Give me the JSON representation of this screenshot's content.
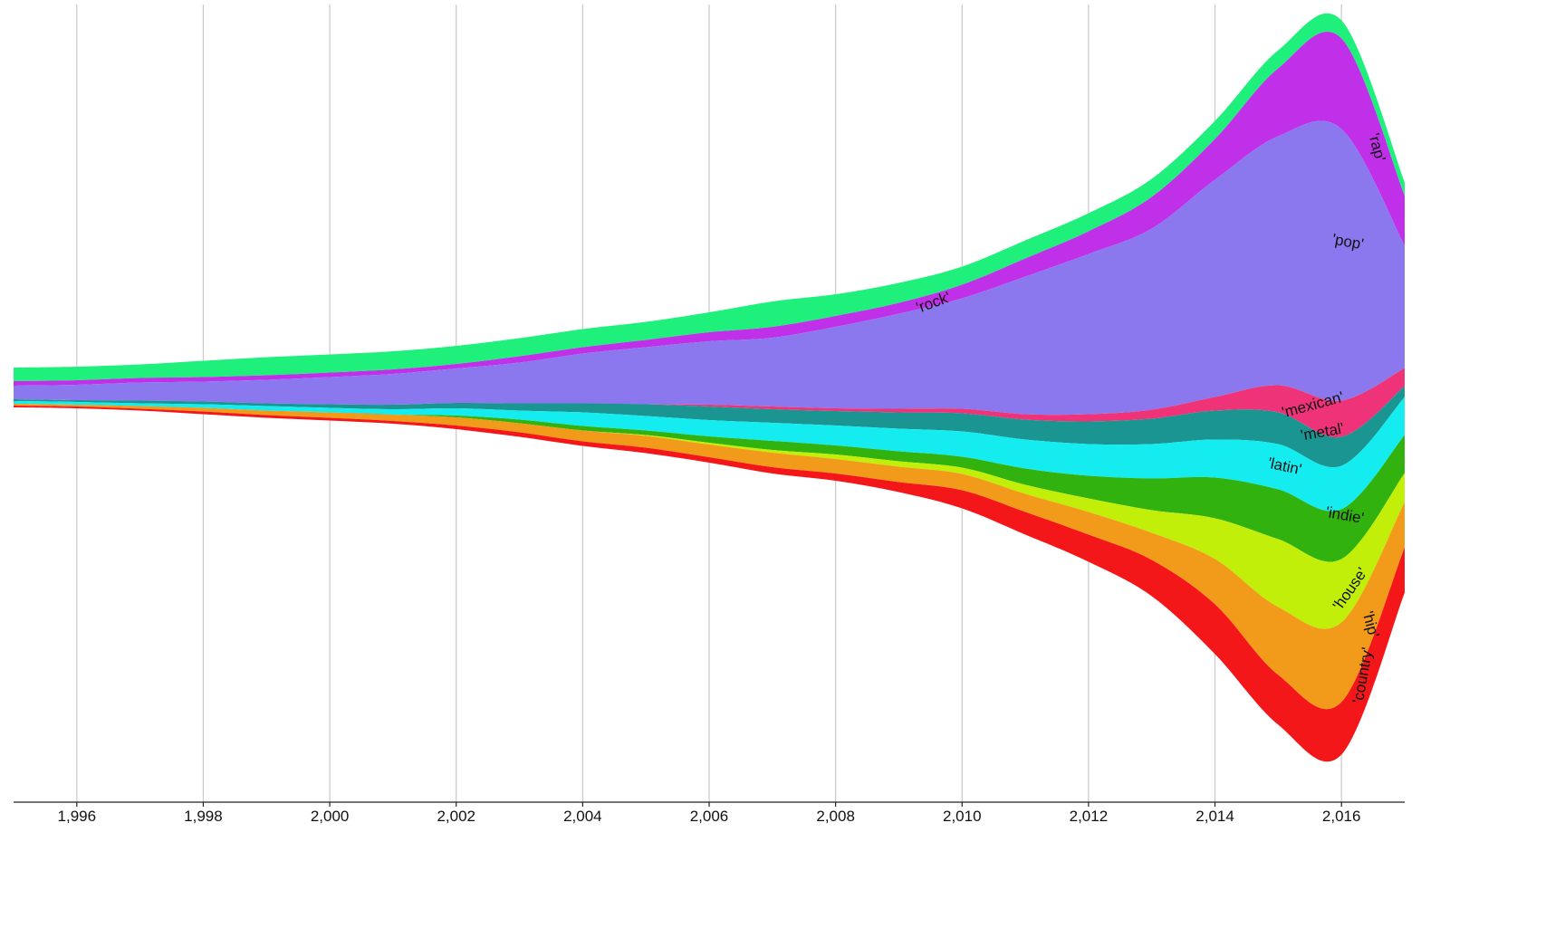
{
  "chart_data": {
    "type": "streamgraph",
    "x": [
      1995,
      1996,
      1997,
      1998,
      1999,
      2000,
      2001,
      2002,
      2003,
      2004,
      2005,
      2006,
      2007,
      2008,
      2009,
      2010,
      2011,
      2012,
      2013,
      2014,
      2015,
      2016,
      2017
    ],
    "xlim": [
      1995,
      2017
    ],
    "ylim": [
      -440,
      430
    ],
    "x_tick_values": [
      1996,
      1998,
      2000,
      2002,
      2004,
      2006,
      2008,
      2010,
      2012,
      2014,
      2016
    ],
    "x_tick_labels": [
      "1,996",
      "1,998",
      "2,000",
      "2,002",
      "2,004",
      "2,006",
      "2,008",
      "2,010",
      "2,012",
      "2,014",
      "2,016"
    ],
    "grid": true,
    "series": [
      {
        "name": "'rock'",
        "color": "#1ff07c",
        "values": [
          15,
          15,
          15,
          18,
          20,
          20,
          20,
          20,
          20,
          20,
          20,
          22,
          28,
          24,
          22,
          20,
          20,
          20,
          20,
          20,
          20,
          20,
          15
        ]
      },
      {
        "name": "'rap'",
        "color": "#c030e8",
        "values": [
          5,
          5,
          5,
          5,
          5,
          5,
          5,
          5,
          7,
          7,
          8,
          10,
          12,
          12,
          12,
          15,
          20,
          25,
          35,
          45,
          75,
          100,
          55
        ]
      },
      {
        "name": "'pop'",
        "color": "#8c78ee",
        "values": [
          15,
          17,
          20,
          22,
          26,
          30,
          34,
          38,
          45,
          55,
          63,
          70,
          76,
          90,
          105,
          122,
          152,
          177,
          200,
          240,
          275,
          300,
          135
        ]
      },
      {
        "name": "'mexican'",
        "color": "#ee3378",
        "values": [
          0,
          0,
          0,
          0,
          0,
          0,
          0,
          0,
          0,
          0,
          0,
          2,
          3,
          3,
          4,
          5,
          6,
          8,
          10,
          15,
          30,
          40,
          20
        ]
      },
      {
        "name": "'metal'",
        "color": "#1a9592",
        "values": [
          2,
          2,
          3,
          3,
          3,
          4,
          5,
          6,
          8,
          10,
          13,
          15,
          15,
          16,
          18,
          20,
          22,
          25,
          28,
          32,
          35,
          32,
          12
        ]
      },
      {
        "name": "'latin'",
        "color": "#15ecf0",
        "values": [
          3,
          3,
          3,
          4,
          5,
          5,
          6,
          8,
          10,
          15,
          16,
          18,
          20,
          22,
          25,
          28,
          32,
          35,
          38,
          42,
          50,
          48,
          42
        ]
      },
      {
        "name": "'indie'",
        "color": "#31b20e",
        "values": [
          0,
          0,
          0,
          0,
          0,
          0,
          0,
          2,
          4,
          5,
          5,
          7,
          10,
          10,
          11,
          12,
          18,
          25,
          35,
          45,
          55,
          55,
          42
        ]
      },
      {
        "name": "'house'",
        "color": "#c2ef0a",
        "values": [
          0,
          0,
          0,
          0,
          0,
          0,
          0,
          0,
          0,
          0,
          1,
          2,
          3,
          5,
          6,
          7,
          10,
          15,
          25,
          45,
          75,
          70,
          32
        ]
      },
      {
        "name": "'hip'",
        "color": "#f29a1a",
        "values": [
          2,
          2,
          3,
          4,
          5,
          6,
          7,
          9,
          10,
          12,
          13,
          14,
          16,
          16,
          17,
          18,
          20,
          25,
          30,
          50,
          75,
          88,
          50
        ]
      },
      {
        "name": "'country'",
        "color": "#f4171a",
        "values": [
          2,
          2,
          2,
          3,
          3,
          3,
          3,
          4,
          5,
          5,
          6,
          6,
          7,
          8,
          11,
          20,
          25,
          30,
          40,
          55,
          55,
          58,
          50
        ]
      }
    ],
    "labels": [
      {
        "series": "'rock'",
        "text": "'rock'",
        "x": 2009.55,
        "y": 93,
        "rotate": -20
      },
      {
        "series": "'rap'",
        "text": "'rap'",
        "x": 2016.55,
        "y": 265,
        "rotate": 75
      },
      {
        "series": "'pop'",
        "text": "'pop'",
        "x": 2016.1,
        "y": 160,
        "rotate": 10
      },
      {
        "series": "'mexican'",
        "text": "'mexican'",
        "x": 2015.55,
        "y": -20,
        "rotate": -15
      },
      {
        "series": "'metal'",
        "text": "'metal'",
        "x": 2015.7,
        "y": -50,
        "rotate": -10
      },
      {
        "series": "'latin'",
        "text": "'latin'",
        "x": 2015.1,
        "y": -88,
        "rotate": 12
      },
      {
        "series": "'indie'",
        "text": "'indie'",
        "x": 2016.05,
        "y": -142,
        "rotate": 10
      },
      {
        "series": "'house'",
        "text": "'house'",
        "x": 2016.15,
        "y": -223,
        "rotate": -55
      },
      {
        "series": "'hip'",
        "text": "'hip'",
        "x": 2016.45,
        "y": -262,
        "rotate": 75
      },
      {
        "series": "'country'",
        "text": "'country'",
        "x": 2016.35,
        "y": -318,
        "rotate": -80
      }
    ]
  }
}
